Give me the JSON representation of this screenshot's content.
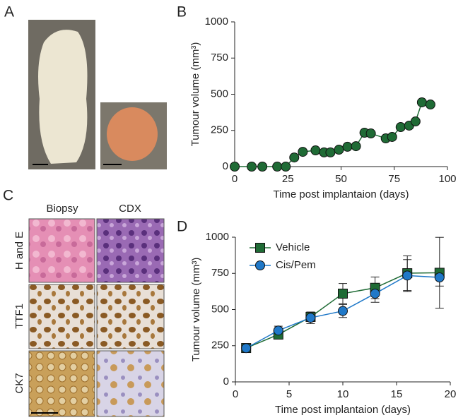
{
  "panel_labels": [
    "A",
    "B",
    "C",
    "D"
  ],
  "histology": {
    "columns": [
      "Biopsy",
      "CDX"
    ],
    "rows": [
      "H and E",
      "TTF1",
      "CK7"
    ]
  },
  "chart_data": [
    {
      "type": "line",
      "xlabel": "Time post implantaion (days)",
      "ylabel": "Tumour volume (mm³)",
      "x": [
        0,
        8,
        13,
        20,
        24,
        28,
        32,
        38,
        42,
        45,
        49,
        53,
        57,
        61,
        64,
        71,
        74,
        78,
        82,
        85,
        88,
        92
      ],
      "series": [
        {
          "color": "#1f6b35",
          "marker": "circle",
          "values": [
            0,
            0,
            0,
            0,
            0,
            63,
            102,
            112,
            98,
            98,
            117,
            137,
            141,
            234,
            229,
            195,
            205,
            273,
            283,
            312,
            444,
            429
          ]
        }
      ],
      "xlim": [
        0,
        100
      ],
      "xticks": [
        0,
        25,
        50,
        75,
        100
      ],
      "ylim": [
        0,
        1000
      ],
      "yticks": [
        0,
        250,
        500,
        750,
        1000
      ]
    },
    {
      "type": "line",
      "xlabel": "Time post implantaion (days)",
      "ylabel": "Tumour volume (mm³)",
      "x": [
        1,
        4,
        7,
        10,
        13,
        16,
        19
      ],
      "series": [
        {
          "name": "Vehicle",
          "color": "#1f6b35",
          "marker": "square",
          "values": [
            234,
            327,
            449,
            610,
            650,
            751,
            754
          ],
          "errors": [
            10,
            20,
            30,
            70,
            75,
            120,
            245
          ]
        },
        {
          "name": "Cis/Pem",
          "color": "#1f78c8",
          "marker": "circle",
          "values": [
            233,
            355,
            443,
            490,
            610,
            735,
            722
          ],
          "errors": [
            10,
            30,
            40,
            45,
            60,
            110,
            60
          ]
        }
      ],
      "xlim": [
        0,
        20
      ],
      "xticks": [
        0,
        5,
        10,
        15,
        20
      ],
      "ylim": [
        0,
        1000
      ],
      "yticks": [
        0,
        250,
        500,
        750,
        1000
      ],
      "legend": "upper left"
    }
  ]
}
